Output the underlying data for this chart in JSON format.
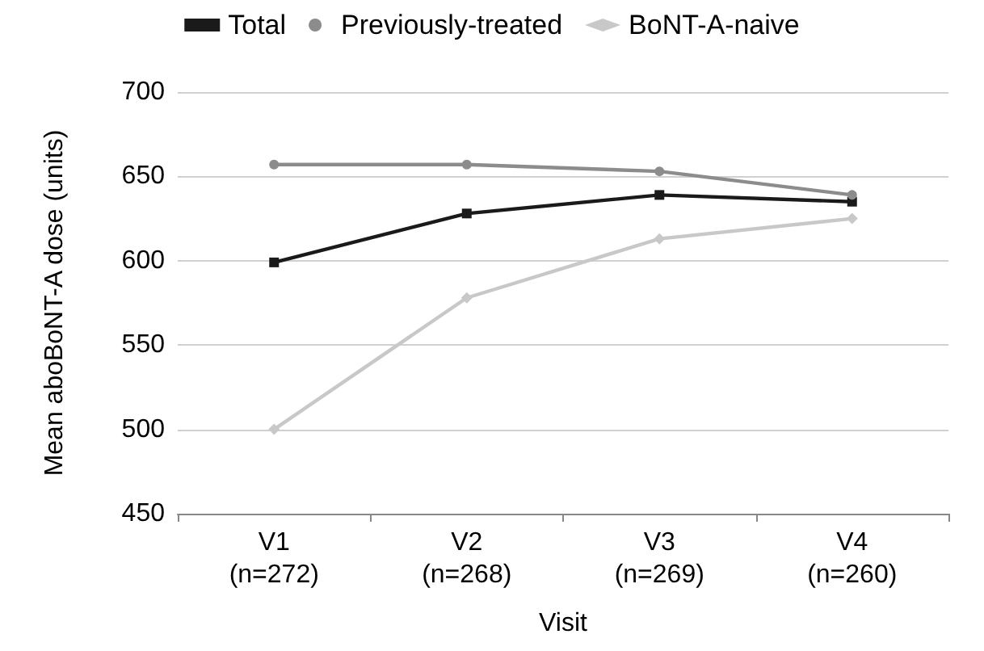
{
  "chart_data": {
    "type": "line",
    "xlabel": "Visit",
    "ylabel": "Mean aboBoNT-A dose (units)",
    "categories": [
      "V1\n(n=272)",
      "V2\n(n=268)",
      "V3\n(n=269)",
      "V4\n(n=260)"
    ],
    "series": [
      {
        "name": "Total",
        "color": "#1a1a1a",
        "marker": "square",
        "values": [
          599,
          628,
          639,
          635
        ]
      },
      {
        "name": "Previously-treated",
        "color": "#8c8c8c",
        "marker": "circle",
        "values": [
          657,
          657,
          653,
          639
        ]
      },
      {
        "name": "BoNT-A-naive",
        "color": "#c8c8c8",
        "marker": "diamond",
        "values": [
          500,
          578,
          613,
          625
        ]
      }
    ],
    "ylim": [
      450,
      700
    ],
    "yticks": [
      450,
      500,
      550,
      600,
      650,
      700
    ],
    "grid": "y",
    "legend": "top",
    "line_style": "solid"
  }
}
